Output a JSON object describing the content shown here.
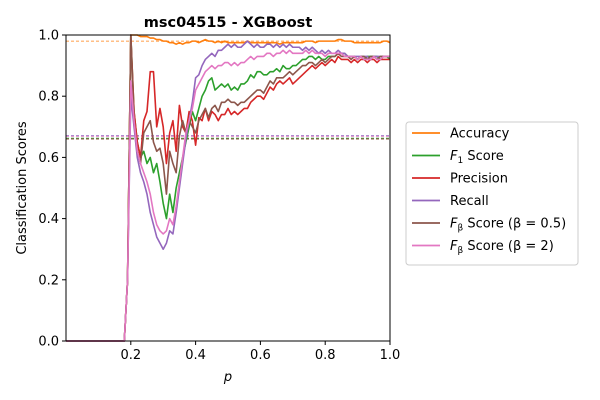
{
  "chart_data": {
    "type": "line",
    "title": "msc04515 - XGBoost",
    "xlabel": "p",
    "ylabel": "Classification Scores",
    "xlim": [
      0.0,
      1.0
    ],
    "ylim": [
      0.0,
      1.0
    ],
    "xticks": [
      0.2,
      0.4,
      0.6,
      0.8,
      1.0
    ],
    "xtick_labels": [
      "0.2",
      "0.4",
      "0.6",
      "0.8",
      "1.0"
    ],
    "yticks": [
      0.0,
      0.2,
      0.4,
      0.6,
      0.8,
      1.0
    ],
    "ytick_labels": [
      "0.0",
      "0.2",
      "0.4",
      "0.6",
      "0.8",
      "1.0"
    ],
    "grid": false,
    "legend_position": "outside-right",
    "x": [
      0.0,
      0.01,
      0.02,
      0.03,
      0.04,
      0.05,
      0.06,
      0.07,
      0.08,
      0.09,
      0.1,
      0.11,
      0.12,
      0.13,
      0.14,
      0.15,
      0.16,
      0.17,
      0.18,
      0.19,
      0.2,
      0.21,
      0.22,
      0.23,
      0.24,
      0.25,
      0.26,
      0.27,
      0.28,
      0.29,
      0.3,
      0.31,
      0.32,
      0.33,
      0.34,
      0.35,
      0.36,
      0.37,
      0.38,
      0.39,
      0.4,
      0.41,
      0.42,
      0.43,
      0.44,
      0.45,
      0.46,
      0.47,
      0.48,
      0.49,
      0.5,
      0.51,
      0.52,
      0.53,
      0.54,
      0.55,
      0.56,
      0.57,
      0.58,
      0.59,
      0.6,
      0.61,
      0.62,
      0.63,
      0.64,
      0.65,
      0.66,
      0.67,
      0.68,
      0.69,
      0.7,
      0.71,
      0.72,
      0.73,
      0.74,
      0.75,
      0.76,
      0.77,
      0.78,
      0.79,
      0.8,
      0.81,
      0.82,
      0.83,
      0.84,
      0.85,
      0.86,
      0.87,
      0.88,
      0.89,
      0.9,
      0.91,
      0.92,
      0.93,
      0.94,
      0.95,
      0.96,
      0.97,
      0.98,
      0.99,
      1.0
    ],
    "series": [
      {
        "name": "Accuracy",
        "color": "#ff7f0e",
        "values": [
          0.0,
          0.0,
          0.0,
          0.0,
          0.0,
          0.0,
          0.0,
          0.0,
          0.0,
          0.0,
          0.0,
          0.0,
          0.0,
          0.0,
          0.0,
          0.0,
          0.0,
          0.0,
          0.0,
          0.2,
          1.0,
          1.0,
          1.0,
          0.995,
          0.995,
          0.995,
          0.99,
          0.99,
          0.985,
          0.985,
          0.98,
          0.98,
          0.975,
          0.975,
          0.97,
          0.975,
          0.97,
          0.975,
          0.975,
          0.98,
          0.98,
          0.975,
          0.98,
          0.985,
          0.98,
          0.98,
          0.975,
          0.98,
          0.975,
          0.98,
          0.975,
          0.975,
          0.975,
          0.975,
          0.975,
          0.975,
          0.98,
          0.975,
          0.975,
          0.975,
          0.975,
          0.975,
          0.975,
          0.975,
          0.975,
          0.975,
          0.97,
          0.975,
          0.975,
          0.975,
          0.975,
          0.975,
          0.975,
          0.975,
          0.98,
          0.98,
          0.98,
          0.975,
          0.98,
          0.98,
          0.98,
          0.98,
          0.98,
          0.98,
          0.985,
          0.985,
          0.98,
          0.98,
          0.98,
          0.975,
          0.975,
          0.975,
          0.975,
          0.975,
          0.975,
          0.975,
          0.975,
          0.975,
          0.98,
          0.98,
          0.975
        ]
      },
      {
        "name": "F1 Score",
        "color": "#2ca02c",
        "values": [
          0.0,
          0.0,
          0.0,
          0.0,
          0.0,
          0.0,
          0.0,
          0.0,
          0.0,
          0.0,
          0.0,
          0.0,
          0.0,
          0.0,
          0.0,
          0.0,
          0.0,
          0.0,
          0.0,
          0.2,
          1.0,
          0.75,
          0.65,
          0.6,
          0.62,
          0.58,
          0.6,
          0.55,
          0.58,
          0.52,
          0.45,
          0.4,
          0.48,
          0.42,
          0.5,
          0.55,
          0.6,
          0.65,
          0.7,
          0.75,
          0.72,
          0.76,
          0.8,
          0.82,
          0.85,
          0.86,
          0.82,
          0.83,
          0.84,
          0.83,
          0.84,
          0.82,
          0.83,
          0.82,
          0.84,
          0.84,
          0.85,
          0.87,
          0.86,
          0.88,
          0.88,
          0.87,
          0.87,
          0.88,
          0.88,
          0.89,
          0.88,
          0.9,
          0.89,
          0.89,
          0.9,
          0.9,
          0.91,
          0.92,
          0.92,
          0.93,
          0.93,
          0.92,
          0.93,
          0.92,
          0.92,
          0.93,
          0.93,
          0.93,
          0.94,
          0.94,
          0.94,
          0.93,
          0.93,
          0.93,
          0.92,
          0.93,
          0.92,
          0.93,
          0.93,
          0.93,
          0.93,
          0.92,
          0.93,
          0.93,
          0.92
        ]
      },
      {
        "name": "Precision",
        "color": "#d62728",
        "values": [
          0.0,
          0.0,
          0.0,
          0.0,
          0.0,
          0.0,
          0.0,
          0.0,
          0.0,
          0.0,
          0.0,
          0.0,
          0.0,
          0.0,
          0.0,
          0.0,
          0.0,
          0.0,
          0.0,
          0.2,
          1.0,
          0.75,
          0.65,
          0.6,
          0.72,
          0.75,
          0.88,
          0.88,
          0.7,
          0.76,
          0.7,
          0.58,
          0.68,
          0.72,
          0.62,
          0.77,
          0.7,
          0.68,
          0.75,
          0.72,
          0.64,
          0.73,
          0.72,
          0.76,
          0.72,
          0.75,
          0.74,
          0.72,
          0.74,
          0.74,
          0.76,
          0.74,
          0.75,
          0.74,
          0.75,
          0.76,
          0.76,
          0.78,
          0.79,
          0.8,
          0.8,
          0.79,
          0.81,
          0.83,
          0.82,
          0.84,
          0.85,
          0.84,
          0.85,
          0.86,
          0.84,
          0.85,
          0.86,
          0.87,
          0.88,
          0.89,
          0.9,
          0.89,
          0.9,
          0.91,
          0.9,
          0.91,
          0.92,
          0.91,
          0.93,
          0.92,
          0.92,
          0.92,
          0.91,
          0.92,
          0.91,
          0.92,
          0.92,
          0.91,
          0.92,
          0.92,
          0.91,
          0.92,
          0.92,
          0.92,
          0.92
        ]
      },
      {
        "name": "Recall",
        "color": "#9467bd",
        "values": [
          0.0,
          0.0,
          0.0,
          0.0,
          0.0,
          0.0,
          0.0,
          0.0,
          0.0,
          0.0,
          0.0,
          0.0,
          0.0,
          0.0,
          0.0,
          0.0,
          0.0,
          0.0,
          0.0,
          0.2,
          0.8,
          0.7,
          0.6,
          0.55,
          0.52,
          0.48,
          0.42,
          0.38,
          0.34,
          0.32,
          0.3,
          0.32,
          0.36,
          0.35,
          0.42,
          0.5,
          0.58,
          0.66,
          0.72,
          0.78,
          0.86,
          0.87,
          0.9,
          0.92,
          0.93,
          0.94,
          0.93,
          0.95,
          0.95,
          0.96,
          0.97,
          0.96,
          0.97,
          0.96,
          0.96,
          0.97,
          0.98,
          0.97,
          0.96,
          0.97,
          0.96,
          0.96,
          0.97,
          0.97,
          0.96,
          0.97,
          0.96,
          0.97,
          0.96,
          0.97,
          0.96,
          0.96,
          0.96,
          0.95,
          0.96,
          0.95,
          0.96,
          0.95,
          0.94,
          0.95,
          0.94,
          0.95,
          0.94,
          0.94,
          0.95,
          0.94,
          0.94,
          0.93,
          0.93,
          0.93,
          0.93,
          0.93,
          0.93,
          0.93,
          0.92,
          0.93,
          0.93,
          0.93,
          0.93,
          0.93,
          0.93
        ]
      },
      {
        "name": "Fβ Score (β=0.5)",
        "color": "#8c564b",
        "values": [
          0.0,
          0.0,
          0.0,
          0.0,
          0.0,
          0.0,
          0.0,
          0.0,
          0.0,
          0.0,
          0.0,
          0.0,
          0.0,
          0.0,
          0.0,
          0.0,
          0.0,
          0.0,
          0.0,
          0.2,
          1.0,
          0.72,
          0.62,
          0.58,
          0.68,
          0.7,
          0.72,
          0.65,
          0.62,
          0.63,
          0.58,
          0.48,
          0.62,
          0.58,
          0.55,
          0.67,
          0.72,
          0.68,
          0.72,
          0.7,
          0.68,
          0.72,
          0.74,
          0.76,
          0.73,
          0.76,
          0.77,
          0.75,
          0.78,
          0.78,
          0.79,
          0.78,
          0.78,
          0.77,
          0.78,
          0.78,
          0.79,
          0.8,
          0.81,
          0.82,
          0.82,
          0.81,
          0.83,
          0.85,
          0.84,
          0.86,
          0.86,
          0.86,
          0.87,
          0.88,
          0.87,
          0.88,
          0.89,
          0.9,
          0.9,
          0.91,
          0.91,
          0.9,
          0.91,
          0.92,
          0.91,
          0.92,
          0.93,
          0.93,
          0.94,
          0.93,
          0.93,
          0.93,
          0.92,
          0.93,
          0.92,
          0.93,
          0.93,
          0.92,
          0.93,
          0.93,
          0.92,
          0.93,
          0.93,
          0.93,
          0.93
        ]
      },
      {
        "name": "Fβ Score (β=2)",
        "color": "#e377c2",
        "values": [
          0.0,
          0.0,
          0.0,
          0.0,
          0.0,
          0.0,
          0.0,
          0.0,
          0.0,
          0.0,
          0.0,
          0.0,
          0.0,
          0.0,
          0.0,
          0.0,
          0.0,
          0.0,
          0.0,
          0.2,
          0.85,
          0.72,
          0.62,
          0.58,
          0.55,
          0.52,
          0.48,
          0.42,
          0.38,
          0.36,
          0.35,
          0.36,
          0.4,
          0.38,
          0.44,
          0.52,
          0.6,
          0.68,
          0.72,
          0.76,
          0.82,
          0.84,
          0.86,
          0.88,
          0.89,
          0.9,
          0.89,
          0.9,
          0.9,
          0.91,
          0.91,
          0.9,
          0.91,
          0.9,
          0.91,
          0.91,
          0.92,
          0.93,
          0.92,
          0.93,
          0.93,
          0.93,
          0.94,
          0.94,
          0.93,
          0.94,
          0.94,
          0.95,
          0.94,
          0.95,
          0.94,
          0.94,
          0.94,
          0.94,
          0.95,
          0.94,
          0.95,
          0.94,
          0.94,
          0.94,
          0.93,
          0.94,
          0.94,
          0.94,
          0.94,
          0.94,
          0.93,
          0.93,
          0.93,
          0.93,
          0.92,
          0.93,
          0.92,
          0.92,
          0.92,
          0.93,
          0.92,
          0.92,
          0.93,
          0.93,
          0.93
        ]
      }
    ],
    "reference_lines": [
      {
        "series": "Accuracy",
        "y": 0.98,
        "color": "#ff7f0e"
      },
      {
        "series": "F1 Score",
        "y": 0.663,
        "color": "#2ca02c"
      },
      {
        "series": "Precision",
        "y": 0.66,
        "color": "#d62728"
      },
      {
        "series": "Recall",
        "y": 0.672,
        "color": "#9467bd"
      },
      {
        "series": "Fβ Score (β=0.5)",
        "y": 0.66,
        "color": "#8c564b"
      },
      {
        "series": "Fβ Score (β=2)",
        "y": 0.668,
        "color": "#e377c2"
      }
    ]
  },
  "legend": {
    "items": [
      {
        "name": "accuracy",
        "main": "Accuracy",
        "sub": "",
        "rest": "",
        "color": "#ff7f0e"
      },
      {
        "name": "f1",
        "main": "F",
        "sub": "1",
        "rest": " Score",
        "color": "#2ca02c"
      },
      {
        "name": "precision",
        "main": "Precision",
        "sub": "",
        "rest": "",
        "color": "#d62728"
      },
      {
        "name": "recall",
        "main": "Recall",
        "sub": "",
        "rest": "",
        "color": "#9467bd"
      },
      {
        "name": "fbeta-05",
        "main": "F",
        "sub": "β",
        "rest": " Score (β = 0.5)",
        "color": "#8c564b"
      },
      {
        "name": "fbeta-2",
        "main": "F",
        "sub": "β",
        "rest": " Score (β = 2)",
        "color": "#e377c2"
      }
    ]
  }
}
